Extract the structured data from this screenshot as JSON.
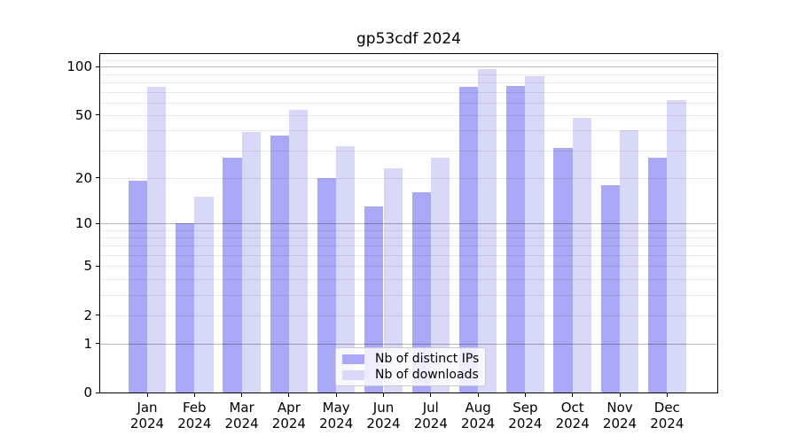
{
  "chart_data": {
    "type": "bar",
    "title": "gp53cdf 2024",
    "categories": [
      "Jan",
      "Feb",
      "Mar",
      "Apr",
      "May",
      "Jun",
      "Jul",
      "Aug",
      "Sep",
      "Oct",
      "Nov",
      "Dec"
    ],
    "x_tick_sublabel": "2024",
    "series": [
      {
        "name": "Nb of distinct IPs",
        "color": "#a9a9f7",
        "values": [
          19,
          10,
          27,
          37,
          20,
          13,
          16,
          75,
          76,
          31,
          18,
          27
        ]
      },
      {
        "name": "Nb of downloads",
        "color": "#d8d8f8",
        "values": [
          75,
          15,
          39,
          54,
          32,
          23,
          27,
          97,
          87,
          48,
          40,
          62
        ]
      }
    ],
    "xlabel": "",
    "ylabel": "",
    "yscale": "log1p",
    "ylim": [
      0,
      120
    ],
    "y_tick_labels": [
      0,
      1,
      2,
      5,
      10,
      20,
      50,
      100
    ],
    "y_major_gridlines": [
      1,
      10,
      100
    ],
    "y_minor_gridlines": [
      2,
      3,
      4,
      5,
      6,
      7,
      8,
      9,
      20,
      30,
      40,
      50,
      60,
      70,
      80,
      90,
      110
    ],
    "grid": true,
    "legend_position": "lower center"
  }
}
